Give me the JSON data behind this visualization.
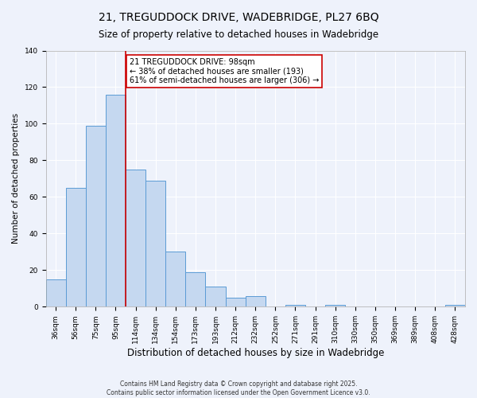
{
  "title": "21, TREGUDDOCK DRIVE, WADEBRIDGE, PL27 6BQ",
  "subtitle": "Size of property relative to detached houses in Wadebridge",
  "xlabel": "Distribution of detached houses by size in Wadebridge",
  "ylabel": "Number of detached properties",
  "bar_labels": [
    "36sqm",
    "56sqm",
    "75sqm",
    "95sqm",
    "114sqm",
    "134sqm",
    "154sqm",
    "173sqm",
    "193sqm",
    "212sqm",
    "232sqm",
    "252sqm",
    "271sqm",
    "291sqm",
    "310sqm",
    "330sqm",
    "350sqm",
    "369sqm",
    "389sqm",
    "408sqm",
    "428sqm"
  ],
  "bar_values": [
    15,
    65,
    99,
    116,
    75,
    69,
    30,
    19,
    11,
    5,
    6,
    0,
    1,
    0,
    1,
    0,
    0,
    0,
    0,
    0,
    1
  ],
  "bar_color": "#c5d8f0",
  "bar_edge_color": "#5b9bd5",
  "background_color": "#eef2fb",
  "grid_color": "#ffffff",
  "vline_x": 3.5,
  "vline_color": "#cc0000",
  "annotation_title": "21 TREGUDDOCK DRIVE: 98sqm",
  "annotation_line1": "← 38% of detached houses are smaller (193)",
  "annotation_line2": "61% of semi-detached houses are larger (306) →",
  "annotation_box_color": "white",
  "annotation_box_edge": "#cc0000",
  "ylim": [
    0,
    140
  ],
  "footer1": "Contains HM Land Registry data © Crown copyright and database right 2025.",
  "footer2": "Contains public sector information licensed under the Open Government Licence v3.0.",
  "title_fontsize": 10,
  "subtitle_fontsize": 8.5,
  "xlabel_fontsize": 8.5,
  "ylabel_fontsize": 7.5,
  "tick_fontsize": 6.5,
  "annotation_fontsize": 7,
  "footer_fontsize": 5.5
}
